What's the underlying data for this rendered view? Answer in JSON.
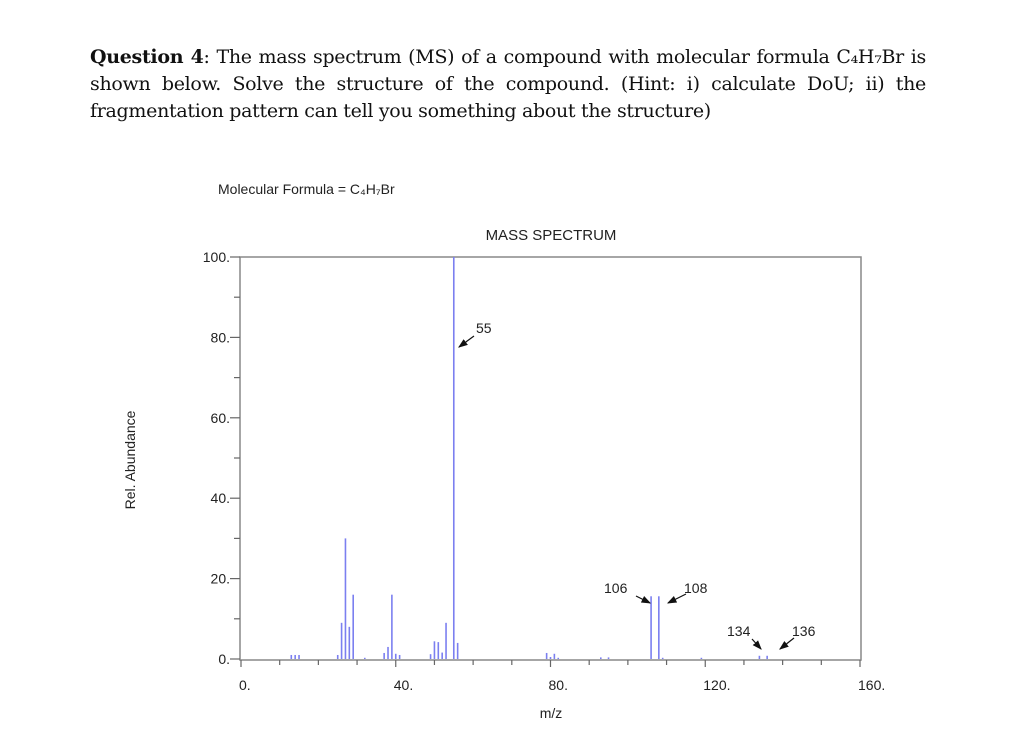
{
  "question": {
    "label": "Question 4",
    "text": ": The mass spectrum (MS) of a compound with molecular formula C₄H₇Br is shown below. Solve the structure of the compound. (Hint: i) calculate DoU; ii) the fragmentation pattern can tell you something about the structure)"
  },
  "chart_data": {
    "type": "bar",
    "title": "MASS SPECTRUM",
    "subtitle": "Molecular Formula = C₄H₇Br",
    "xlabel": "m/z",
    "ylabel": "Rel. Abundance",
    "xlim": [
      0,
      160
    ],
    "ylim": [
      0,
      100
    ],
    "xticks": [
      "0.",
      "40.",
      "80.",
      "120.",
      "160."
    ],
    "yticks": [
      "0.",
      "20.",
      "40.",
      "60.",
      "80.",
      "100."
    ],
    "bar_color": "#7b7ff0",
    "peaks": [
      {
        "mz": 13,
        "abundance": 1
      },
      {
        "mz": 14,
        "abundance": 1
      },
      {
        "mz": 15,
        "abundance": 1
      },
      {
        "mz": 25,
        "abundance": 1
      },
      {
        "mz": 26,
        "abundance": 9
      },
      {
        "mz": 27,
        "abundance": 30
      },
      {
        "mz": 28,
        "abundance": 8
      },
      {
        "mz": 29,
        "abundance": 16
      },
      {
        "mz": 32,
        "abundance": 0.3
      },
      {
        "mz": 37,
        "abundance": 1.5
      },
      {
        "mz": 38,
        "abundance": 3
      },
      {
        "mz": 39,
        "abundance": 16
      },
      {
        "mz": 40,
        "abundance": 1.3
      },
      {
        "mz": 41,
        "abundance": 1
      },
      {
        "mz": 49,
        "abundance": 1.2
      },
      {
        "mz": 50,
        "abundance": 4.4
      },
      {
        "mz": 51,
        "abundance": 4.2
      },
      {
        "mz": 52,
        "abundance": 1.6
      },
      {
        "mz": 53,
        "abundance": 9
      },
      {
        "mz": 55,
        "abundance": 100
      },
      {
        "mz": 56,
        "abundance": 4
      },
      {
        "mz": 79,
        "abundance": 1.5
      },
      {
        "mz": 80,
        "abundance": 0.5
      },
      {
        "mz": 81,
        "abundance": 1.3
      },
      {
        "mz": 82,
        "abundance": 0.3
      },
      {
        "mz": 93,
        "abundance": 0.4
      },
      {
        "mz": 95,
        "abundance": 0.4
      },
      {
        "mz": 106,
        "abundance": 15.6
      },
      {
        "mz": 108,
        "abundance": 15.6
      },
      {
        "mz": 109,
        "abundance": 0.3
      },
      {
        "mz": 119,
        "abundance": 0.2
      },
      {
        "mz": 134,
        "abundance": 0.8
      },
      {
        "mz": 136,
        "abundance": 0.8
      }
    ],
    "annotations": [
      "55",
      "106",
      "108",
      "134",
      "136"
    ]
  }
}
